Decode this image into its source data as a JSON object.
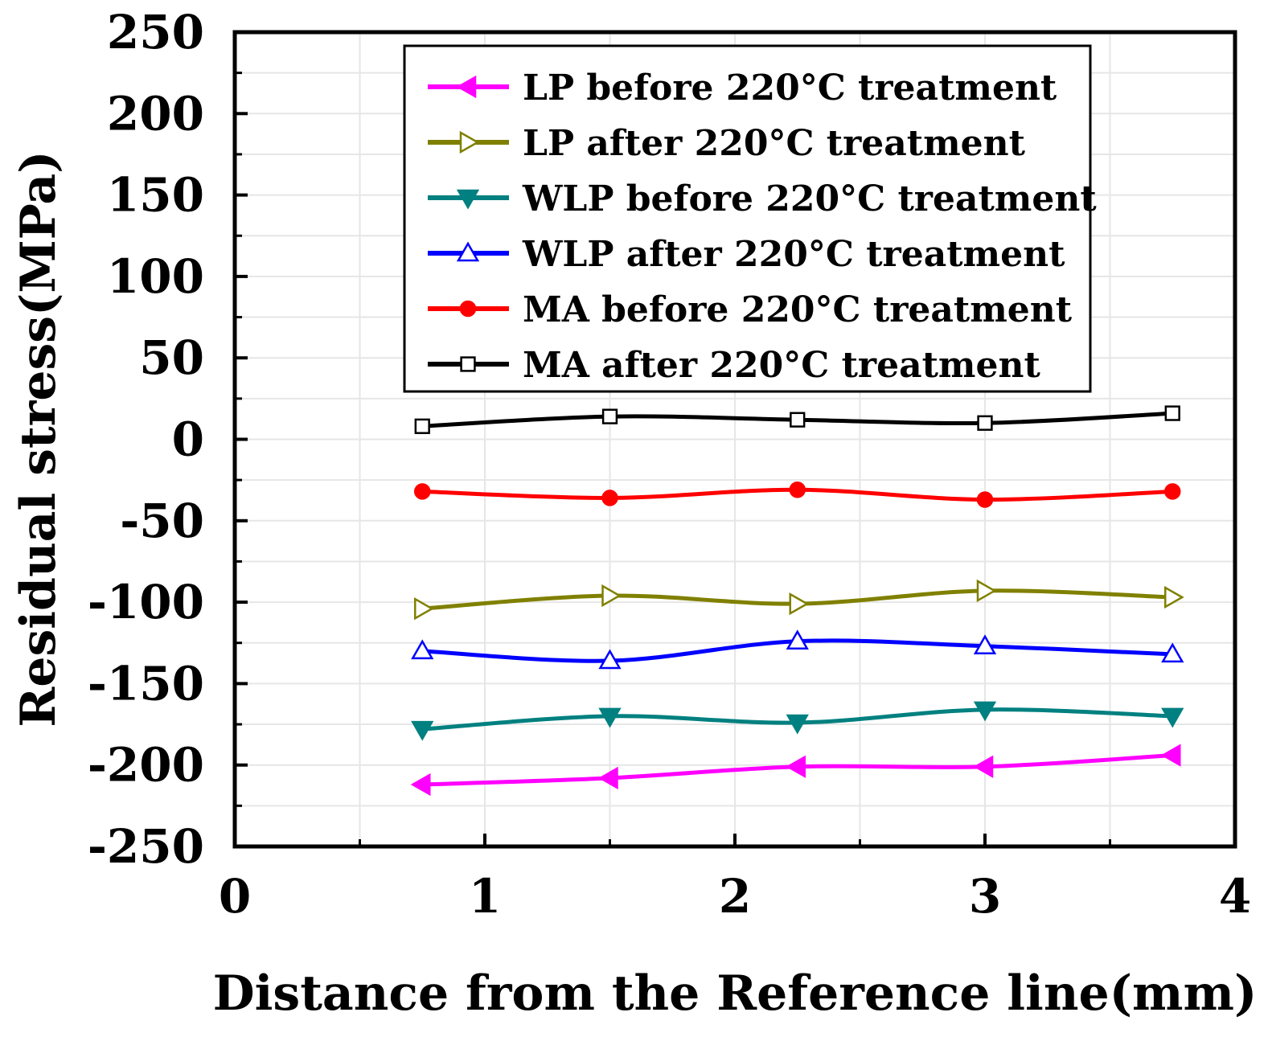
{
  "chart_data": {
    "type": "line",
    "title": "",
    "xlabel": "Distance from the Reference line(mm)",
    "ylabel": "Residual stress(MPa)",
    "xlim": [
      0,
      4
    ],
    "ylim": [
      -250,
      250
    ],
    "xticks": [
      0,
      1,
      2,
      3,
      4
    ],
    "yticks": [
      -250,
      -200,
      -150,
      -100,
      -50,
      0,
      50,
      100,
      150,
      200,
      250
    ],
    "grid": true,
    "legend_position": "top-right",
    "x": [
      0.75,
      1.5,
      2.25,
      3.0,
      3.75
    ],
    "series": [
      {
        "name": "LP before 220°C treatment",
        "values": [
          -212,
          -208,
          -201,
          -201,
          -194
        ],
        "color": "#ff00ff",
        "marker": "triangle-left",
        "filled": true
      },
      {
        "name": "LP after 220°C treatment",
        "values": [
          -104,
          -96,
          -101,
          -93,
          -97
        ],
        "color": "#808000",
        "marker": "triangle-right",
        "filled": false
      },
      {
        "name": "WLP before 220°C treatment",
        "values": [
          -178,
          -170,
          -174,
          -166,
          -170
        ],
        "color": "#008080",
        "marker": "triangle-down",
        "filled": true
      },
      {
        "name": "WLP after 220°C treatment",
        "values": [
          -130,
          -136,
          -124,
          -127,
          -132
        ],
        "color": "#0000ff",
        "marker": "triangle-up",
        "filled": false
      },
      {
        "name": "MA before 220°C treatment",
        "values": [
          -32,
          -36,
          -31,
          -37,
          -32
        ],
        "color": "#ff0000",
        "marker": "circle",
        "filled": true
      },
      {
        "name": "MA after 220°C treatment",
        "values": [
          8,
          14,
          12,
          10,
          16
        ],
        "color": "#000000",
        "marker": "square",
        "filled": false
      }
    ]
  }
}
